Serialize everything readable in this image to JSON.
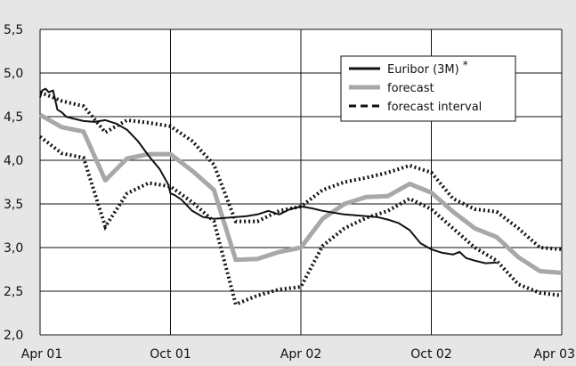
{
  "chart_data": {
    "type": "line",
    "title": "",
    "xlabel": "",
    "ylabel": "",
    "x_ticks": [
      "Apr 01",
      "Oct 01",
      "Apr 02",
      "Oct 02",
      "Apr 03"
    ],
    "y_ticks": [
      "2,0",
      "2,5",
      "3,0",
      "3,5",
      "4,0",
      "4,5",
      "5,0",
      "5,5"
    ],
    "xlim": [
      0,
      24
    ],
    "ylim": [
      2.0,
      5.5
    ],
    "grid": true,
    "legend_position": "top-right",
    "series": [
      {
        "name": "Euribor (3M)",
        "name_suffix": "*",
        "style": "solid-black",
        "x": [
          0,
          0.1,
          0.25,
          0.4,
          0.6,
          0.8,
          1.0,
          1.2,
          1.5,
          2.0,
          2.5,
          3.0,
          3.5,
          4.0,
          4.5,
          5.0,
          5.5,
          5.9,
          6.0,
          6.2,
          6.5,
          7.0,
          7.5,
          8.0,
          8.5,
          9.0,
          9.5,
          10.0,
          10.5,
          11.0,
          11.5,
          12.0,
          12.5,
          13.0,
          13.5,
          14.0,
          14.5,
          15.0,
          15.5,
          16.0,
          16.5,
          17.0,
          17.5,
          18.0,
          18.5,
          19.0,
          19.3,
          19.6,
          20.0,
          20.5,
          21.0
        ],
        "y": [
          4.72,
          4.8,
          4.82,
          4.78,
          4.8,
          4.58,
          4.55,
          4.5,
          4.48,
          4.45,
          4.44,
          4.46,
          4.42,
          4.35,
          4.22,
          4.05,
          3.9,
          3.72,
          3.62,
          3.6,
          3.55,
          3.42,
          3.35,
          3.33,
          3.34,
          3.35,
          3.36,
          3.38,
          3.42,
          3.38,
          3.44,
          3.47,
          3.45,
          3.42,
          3.4,
          3.38,
          3.37,
          3.36,
          3.35,
          3.32,
          3.28,
          3.2,
          3.05,
          2.98,
          2.94,
          2.92,
          2.95,
          2.88,
          2.85,
          2.82,
          2.83
        ]
      },
      {
        "name": "forecast",
        "style": "solid-gray",
        "x": [
          0,
          1,
          2,
          3,
          4,
          5,
          6,
          7,
          8,
          9,
          10,
          11,
          12,
          13,
          14,
          15,
          16,
          17,
          18,
          19,
          20,
          21,
          22,
          23,
          24
        ],
        "y": [
          4.52,
          4.38,
          4.33,
          3.77,
          4.02,
          4.07,
          4.07,
          3.88,
          3.66,
          2.86,
          2.87,
          2.95,
          3.0,
          3.33,
          3.5,
          3.58,
          3.59,
          3.73,
          3.63,
          3.41,
          3.22,
          3.12,
          2.89,
          2.73,
          2.71
        ]
      },
      {
        "name": "forecast interval",
        "style": "dotted-black",
        "part": "upper",
        "x": [
          0,
          1,
          2,
          3,
          4,
          5,
          6,
          7,
          8,
          9,
          10,
          11,
          12,
          13,
          14,
          15,
          16,
          17,
          18,
          19,
          20,
          21,
          22,
          23,
          24
        ],
        "y": [
          4.78,
          4.68,
          4.62,
          4.32,
          4.46,
          4.43,
          4.39,
          4.22,
          3.95,
          3.3,
          3.3,
          3.42,
          3.47,
          3.66,
          3.75,
          3.8,
          3.86,
          3.94,
          3.86,
          3.56,
          3.44,
          3.41,
          3.22,
          3.0,
          2.98
        ]
      },
      {
        "name": "forecast interval",
        "style": "dotted-black",
        "part": "lower",
        "x": [
          0,
          1,
          2,
          3,
          4,
          5,
          6,
          7,
          8,
          9,
          10,
          11,
          12,
          13,
          14,
          15,
          16,
          17,
          18,
          19,
          20,
          21,
          22,
          23,
          24
        ],
        "y": [
          4.27,
          4.08,
          4.03,
          3.24,
          3.62,
          3.74,
          3.7,
          3.52,
          3.3,
          2.35,
          2.45,
          2.52,
          2.55,
          3.02,
          3.22,
          3.34,
          3.42,
          3.56,
          3.44,
          3.22,
          3.0,
          2.85,
          2.58,
          2.48,
          2.45
        ]
      }
    ]
  },
  "legend": [
    {
      "label": "Euribor (3M)",
      "suffix": "*",
      "style": "solid-black"
    },
    {
      "label": "forecast",
      "style": "solid-gray"
    },
    {
      "label": "forecast interval",
      "style": "dashed-black"
    }
  ],
  "colors": {
    "page_background": "#e6e6e6",
    "plot_background": "#ffffff",
    "grid": "#111111",
    "euribor": "#111111",
    "forecast": "#a8a8a8",
    "interval": "#111111"
  }
}
